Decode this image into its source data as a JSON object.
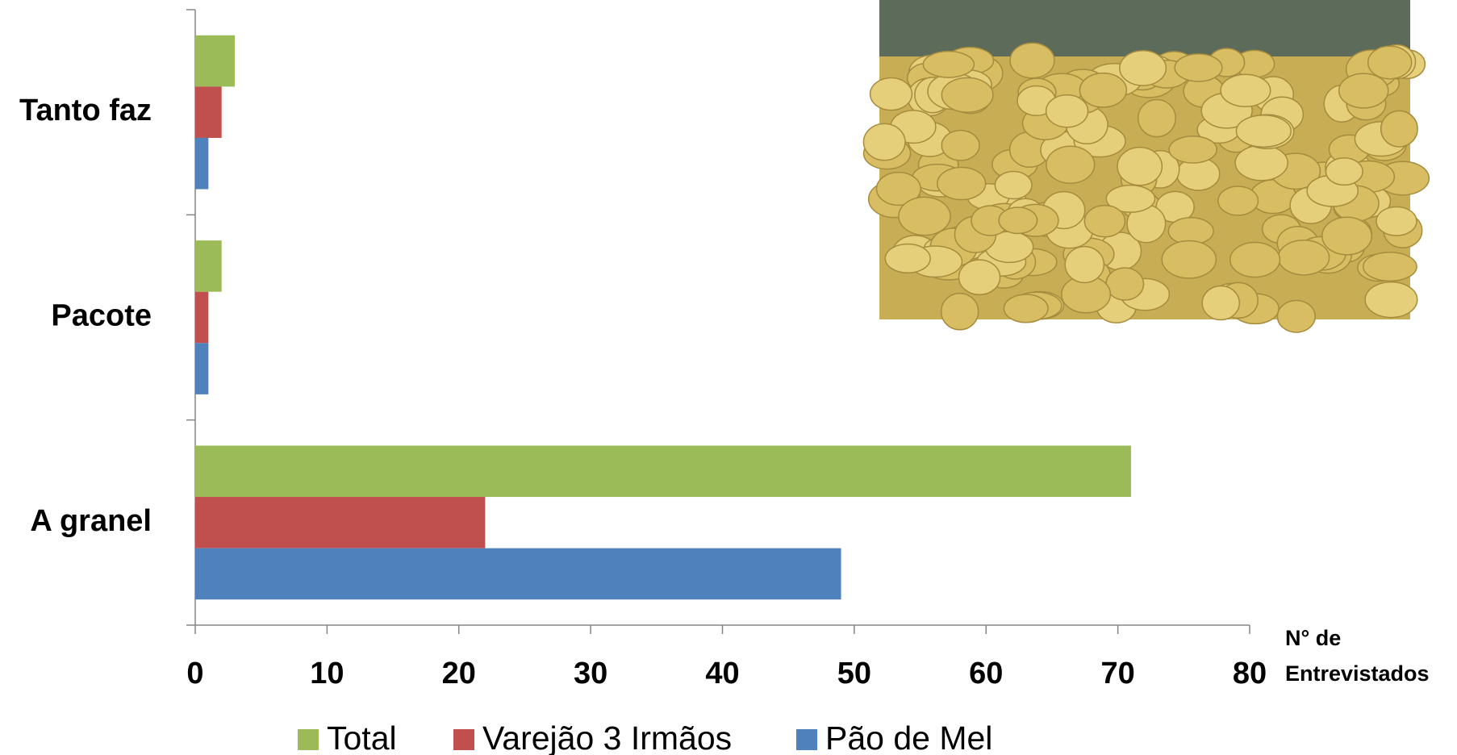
{
  "chart_data": {
    "type": "hbar",
    "x_label": [
      "N° de",
      "Entrevistados"
    ],
    "categories": [
      "A granel",
      "Pacote",
      "Tanto faz"
    ],
    "series": [
      {
        "name": "Total",
        "color": "#9bbb59",
        "values": [
          71,
          2,
          3
        ]
      },
      {
        "name": "Varejão 3 Irmãos",
        "color": "#c0504d",
        "values": [
          22,
          1,
          2
        ]
      },
      {
        "name": "Pão de Mel",
        "color": "#4f81bd",
        "values": [
          49,
          1,
          1
        ]
      }
    ],
    "xlim": [
      0,
      80
    ],
    "xticks": [
      0,
      10,
      20,
      30,
      40,
      50,
      60,
      70,
      80
    ],
    "grid": false,
    "legend": "bottom"
  }
}
